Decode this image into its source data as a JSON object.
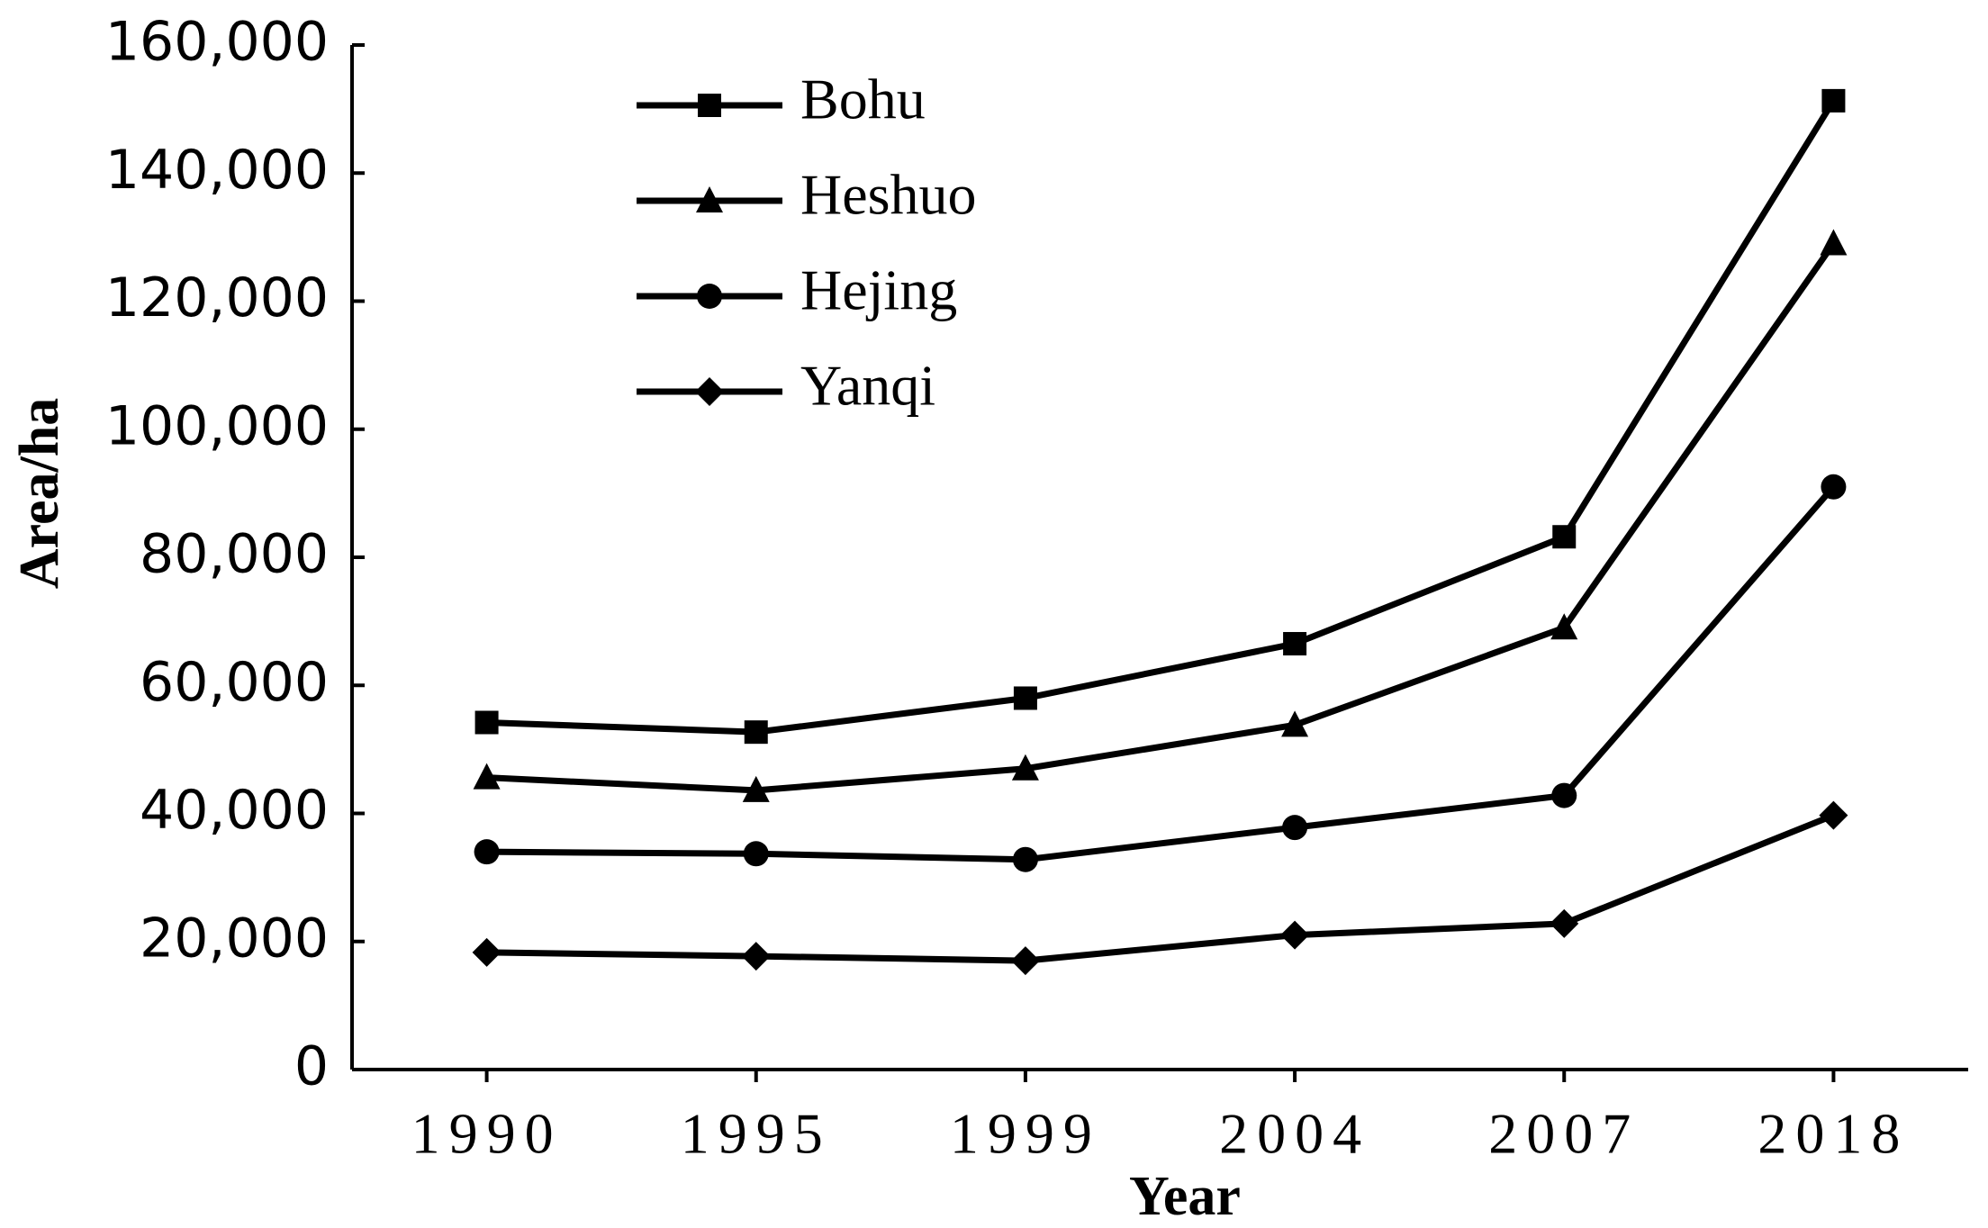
{
  "chart_data": {
    "type": "line",
    "x_label": "Year",
    "y_label": "Area/ha",
    "categories": [
      "1990",
      "1995",
      "1999",
      "2004",
      "2007",
      "2018"
    ],
    "series": [
      {
        "name": "Bohu",
        "color": "#000000",
        "marker": "square",
        "values": [
          54200,
          52700,
          58000,
          66500,
          83200,
          151300
        ]
      },
      {
        "name": "Heshuo",
        "color": "#000000",
        "marker": "triangle",
        "values": [
          45600,
          43600,
          47000,
          53800,
          69000,
          129000
        ]
      },
      {
        "name": "Hejing",
        "color": "#000000",
        "marker": "circle",
        "values": [
          34000,
          33700,
          32800,
          37800,
          42800,
          91000
        ]
      },
      {
        "name": "Yanqi",
        "color": "#000000",
        "marker": "diamond",
        "values": [
          18300,
          17700,
          17000,
          21000,
          22800,
          39700
        ]
      }
    ],
    "ylim": [
      0,
      160000
    ],
    "yticks": [
      0,
      {
        "value": 20000,
        "label": "20,000"
      },
      {
        "value": 40000,
        "label": "40,000"
      },
      {
        "value": 60000,
        "label": "60,000"
      },
      {
        "value": 80000,
        "label": "80,000"
      },
      {
        "value": 100000,
        "label": "100,000"
      },
      {
        "value": 120000,
        "label": "120,000"
      },
      {
        "value": 140000,
        "label": "140,000"
      },
      {
        "value": 160000,
        "label": "160,000"
      }
    ],
    "legend": "top-left",
    "grid": false
  }
}
